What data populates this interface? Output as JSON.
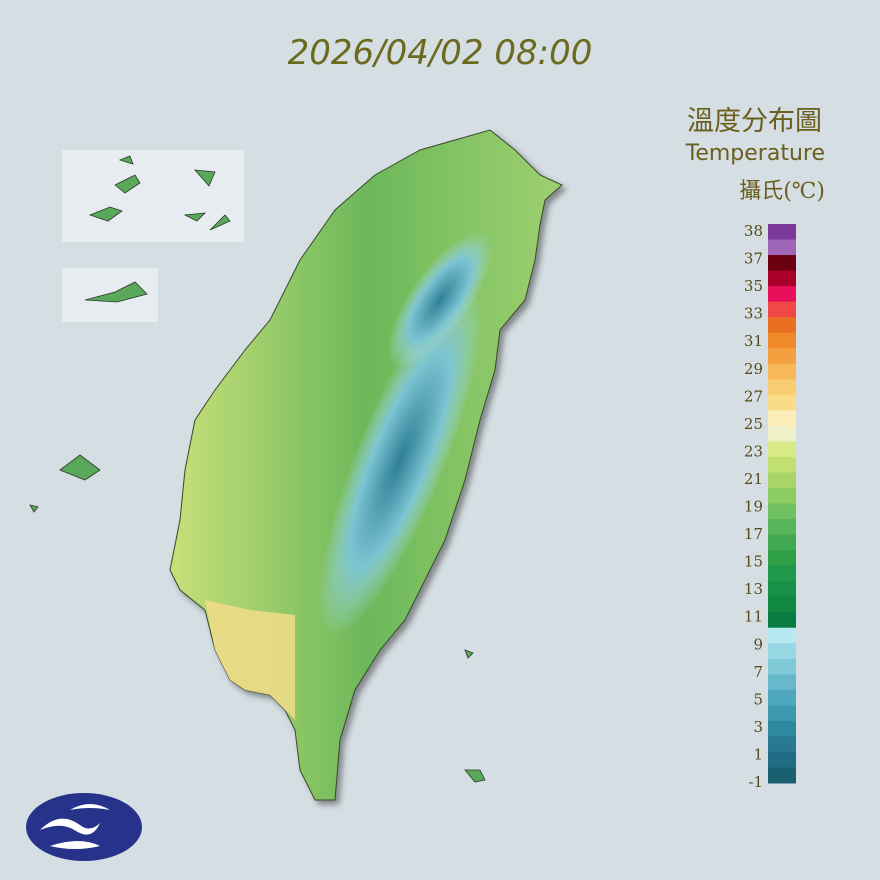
{
  "header": {
    "datetime": "2026/04/02 08:00"
  },
  "legend": {
    "title": "溫度分布圖",
    "subtitle": "Temperature",
    "unit": "攝氏(℃)",
    "labels": [
      38,
      37,
      35,
      33,
      31,
      29,
      27,
      25,
      23,
      21,
      19,
      17,
      15,
      13,
      11,
      9,
      7,
      5,
      3,
      1,
      -1
    ],
    "colors": [
      "#7b3a9a",
      "#a066b8",
      "#6b0010",
      "#a8002a",
      "#e8105a",
      "#f04848",
      "#e87020",
      "#f08a28",
      "#f3a040",
      "#f6b858",
      "#f8cc70",
      "#fadc88",
      "#fbeeb8",
      "#eef0c8",
      "#d8eb88",
      "#c0e070",
      "#a8d468",
      "#8ccc60",
      "#70c060",
      "#58b458",
      "#40a850",
      "#30a048",
      "#20984a",
      "#189048",
      "#108840",
      "#087c40",
      "#b8e8f0",
      "#98d8e4",
      "#80cad8",
      "#68b8cc",
      "#50a8c0",
      "#4098b0",
      "#3088a0",
      "#287890",
      "#206c84",
      "#186070"
    ]
  }
}
